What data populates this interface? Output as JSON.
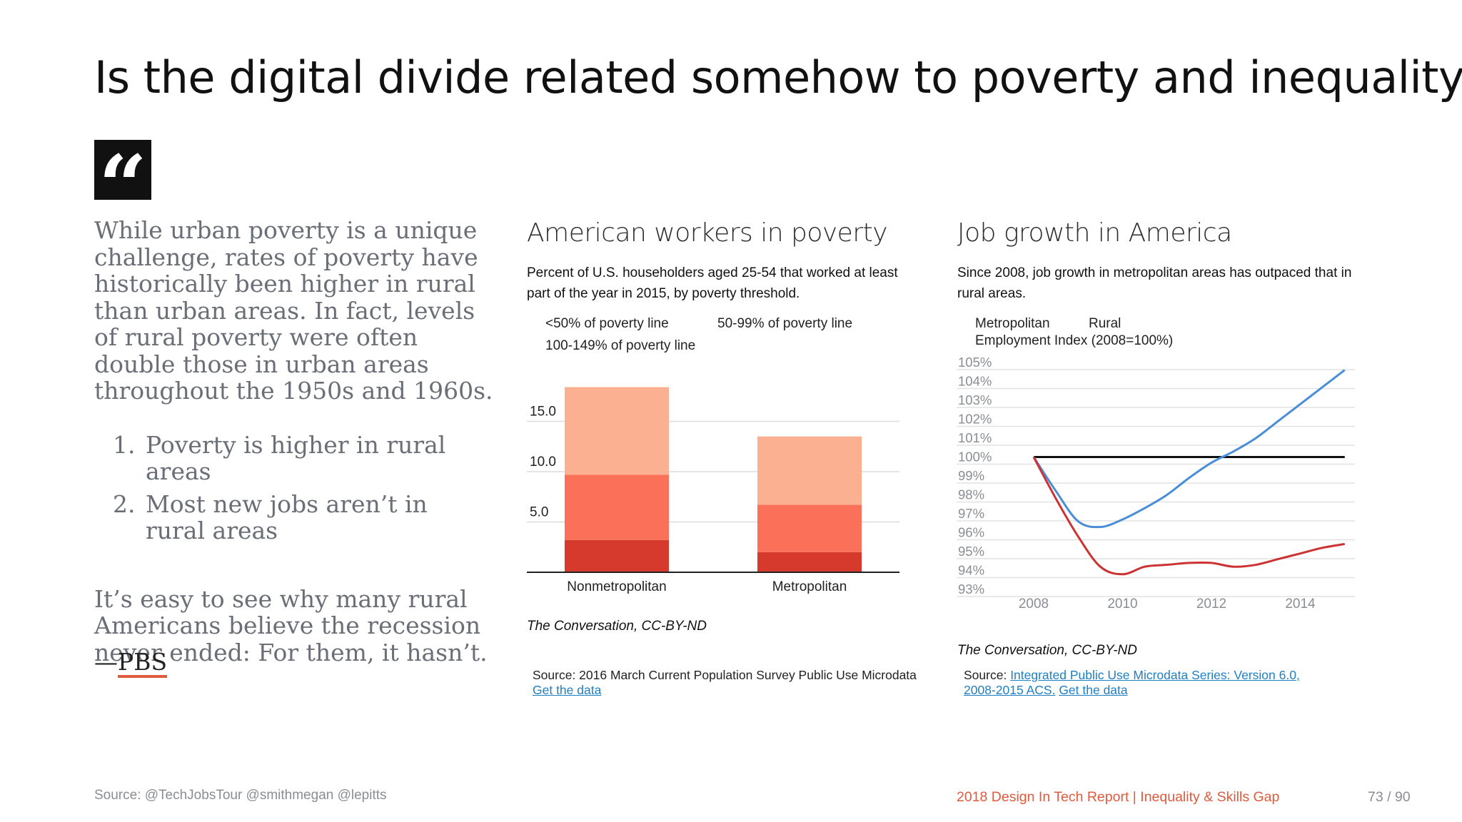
{
  "slide": {
    "title": "Is the digital divide related somehow to poverty and inequality?"
  },
  "quote": {
    "icon": "quote-icon",
    "mark": "“",
    "paragraph": "While urban poverty is a unique challenge, rates of poverty have historically been higher in rural than urban areas. In fact, levels of rural poverty were often double those in urban areas throughout the 1950s and 1960s.",
    "list": [
      "Poverty is higher in rural areas",
      "Most new jobs aren’t in rural areas"
    ],
    "closing": "It’s easy to see why many rural Americans believe the recession never ended: For them, it hasn’t.",
    "dash": "—",
    "source": "PBS",
    "accent_color": "#e05a3e"
  },
  "left_chart": {
    "subtitle": "Percent of U.S. householders aged 25-54 that worked at least part of the year in 2015, by poverty threshold.",
    "credit": "The Conversation, CC-BY-ND",
    "source_prefix": "Source: 2016 March Current Population Survey Public Use Microdata",
    "source_link": "Get the data"
  },
  "right_chart": {
    "subtitle": "Since 2008, job growth in metropolitan areas has outpaced that in rural areas.",
    "index_label": "Employment Index (2008=100%)",
    "credit": "The Conversation, CC-BY-ND",
    "source_prefix": "Source:",
    "source_link1": "Integrated Public Use Microdata Series: Version 6.0, 2008-2015 ACS.",
    "source_link2": "Get the data"
  },
  "chart_data": [
    {
      "type": "bar",
      "stacked": true,
      "title": "American workers in poverty",
      "categories": [
        "Nonmetropolitan",
        "Metropolitan"
      ],
      "series": [
        {
          "name": "<50% of poverty line",
          "values": [
            3.2,
            2.0
          ],
          "color": "#d63a2c"
        },
        {
          "name": "50-99% of poverty line",
          "values": [
            6.5,
            4.7
          ],
          "color": "#fa7059"
        },
        {
          "name": "100-149% of poverty line",
          "values": [
            8.7,
            6.8
          ],
          "color": "#fbb092"
        }
      ],
      "yticks": [
        5.0,
        10.0,
        15.0
      ],
      "ytick_labels": [
        "5.0",
        "10.0",
        "15.0"
      ],
      "ylim": [
        0,
        20
      ],
      "grid": true,
      "legend_position": "top"
    },
    {
      "type": "line",
      "title": "Job growth in America",
      "ylabel": "Employment Index (2008=100%)",
      "x": [
        2008,
        2008.5,
        2009,
        2009.5,
        2010,
        2010.5,
        2011,
        2011.5,
        2012,
        2012.5,
        2013,
        2013.5,
        2014,
        2014.5,
        2015
      ],
      "series": [
        {
          "name": "Metropolitan",
          "color": "#4a8fd6",
          "values": [
            100.0,
            98.2,
            96.6,
            96.3,
            96.7,
            97.3,
            98.0,
            98.9,
            99.7,
            100.3,
            101.0,
            101.9,
            102.8,
            103.7,
            104.6
          ]
        },
        {
          "name": "Rural",
          "color": "#cc3232",
          "values": [
            100.0,
            97.8,
            95.8,
            94.2,
            93.8,
            94.2,
            94.3,
            94.4,
            94.4,
            94.2,
            94.3,
            94.6,
            94.9,
            95.2,
            95.4
          ]
        }
      ],
      "reference_line": {
        "value": 100,
        "x_start": 2008,
        "x_end": 2015,
        "color": "#111111"
      },
      "xticks": [
        2008,
        2010,
        2012,
        2014
      ],
      "xtick_labels": [
        "2008",
        "2010",
        "2012",
        "2014"
      ],
      "yticks": [
        93,
        94,
        95,
        96,
        97,
        98,
        99,
        100,
        101,
        102,
        103,
        104,
        105
      ],
      "ytick_labels": [
        "93%",
        "94%",
        "95%",
        "96%",
        "97%",
        "98%",
        "99%",
        "100%",
        "101%",
        "102%",
        "103%",
        "104%",
        "105%"
      ],
      "ylim": [
        93,
        105
      ],
      "xlim": [
        2008,
        2015
      ],
      "grid": true,
      "legend_position": "top-left"
    }
  ],
  "footer": {
    "source": "Source: @TechJobsTour @smithmegan @lepitts",
    "report": "2018 Design In Tech Report | Inequality & Skills Gap",
    "page": "73 / 90"
  }
}
